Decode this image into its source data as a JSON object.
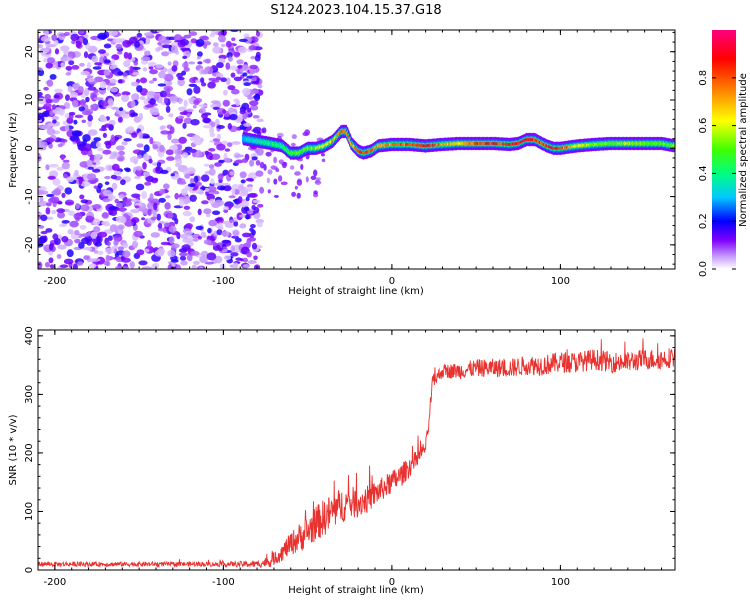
{
  "title": "S124.2023.104.15.37.G18",
  "chart_data": [
    {
      "type": "heatmap",
      "xlabel": "Height of straight line (km)",
      "ylabel": "Frequency (Hz)",
      "xlim": [
        -210,
        168
      ],
      "ylim": [
        -25,
        24.5
      ],
      "xticks": [
        -200,
        -100,
        0,
        100
      ],
      "yticks": [
        -20,
        -10,
        0,
        10,
        20
      ],
      "noise_region_x": [
        -210,
        -78
      ],
      "ridge_x": [
        -88,
        -80,
        -72,
        -65,
        -60,
        -55,
        -50,
        -45,
        -40,
        -35,
        -30,
        -27,
        -24,
        -20,
        -17,
        -12,
        -8,
        0,
        10,
        20,
        30,
        40,
        50,
        60,
        70,
        75,
        80,
        85,
        88,
        92,
        96,
        100,
        110,
        120,
        130,
        140,
        150,
        160,
        168
      ],
      "ridge_freq": [
        2.0,
        1.5,
        1.0,
        0.5,
        -1.0,
        -1.0,
        0.0,
        0.0,
        0.5,
        1.5,
        3.5,
        3.5,
        1.0,
        -0.5,
        -1.0,
        -0.5,
        0.5,
        0.8,
        0.8,
        0.5,
        0.8,
        1.0,
        1.0,
        1.0,
        0.8,
        1.0,
        1.8,
        1.8,
        1.2,
        0.5,
        0.0,
        0.0,
        0.5,
        0.8,
        1.0,
        1.0,
        1.0,
        1.0,
        0.5
      ],
      "ridge_amplitude": [
        0.3,
        0.35,
        0.4,
        0.4,
        0.45,
        0.5,
        0.5,
        0.55,
        0.6,
        0.7,
        0.75,
        0.75,
        0.7,
        0.8,
        0.85,
        0.8,
        0.7,
        0.75,
        0.8,
        0.85,
        0.75,
        0.6,
        0.8,
        0.85,
        0.85,
        0.9,
        0.9,
        0.85,
        0.8,
        0.85,
        0.9,
        0.85,
        0.6,
        0.55,
        0.5,
        0.55,
        0.5,
        0.5,
        0.5
      ]
    },
    {
      "type": "colorbar",
      "label": "Normalized spectral amplitude",
      "range": [
        0,
        1
      ],
      "ticks": [
        "0.0",
        "0.2",
        "0.4",
        "0.6",
        "0.8"
      ],
      "tick_values": [
        0,
        0.2,
        0.4,
        0.6,
        0.8
      ]
    },
    {
      "type": "line",
      "xlabel": "Height of straight line (km)",
      "ylabel": "SNR (10 * v/v)",
      "xlim": [
        -210,
        168
      ],
      "ylim": [
        0,
        410
      ],
      "xticks": [
        -200,
        -100,
        0,
        100
      ],
      "yticks": [
        0,
        100,
        200,
        300,
        400
      ],
      "color": "#e8322f",
      "x": [
        -210,
        -150,
        -100,
        -80,
        -72,
        -65,
        -60,
        -55,
        -50,
        -45,
        -40,
        -35,
        -30,
        -25,
        -20,
        -15,
        -10,
        -5,
        0,
        5,
        10,
        15,
        20,
        22,
        24,
        30,
        40,
        50,
        60,
        70,
        80,
        90,
        100,
        110,
        120,
        130,
        140,
        150,
        160,
        168
      ],
      "y": [
        10,
        10,
        10,
        10,
        15,
        30,
        45,
        55,
        65,
        80,
        90,
        100,
        110,
        115,
        115,
        120,
        130,
        140,
        150,
        160,
        175,
        190,
        210,
        250,
        320,
        340,
        340,
        345,
        345,
        345,
        350,
        350,
        355,
        355,
        360,
        355,
        355,
        360,
        360,
        365
      ],
      "noise": [
        4,
        4,
        4,
        6,
        10,
        15,
        20,
        25,
        28,
        30,
        32,
        32,
        30,
        28,
        26,
        24,
        22,
        20,
        20,
        20,
        18,
        15,
        12,
        12,
        12,
        12,
        14,
        15,
        16,
        16,
        17,
        18,
        18,
        18,
        18,
        18,
        18,
        18,
        18,
        18
      ]
    }
  ]
}
